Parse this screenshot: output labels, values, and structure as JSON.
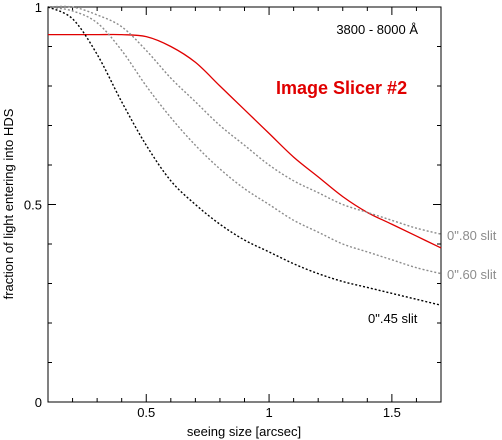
{
  "chart_data": {
    "type": "line",
    "title": "",
    "xlabel": "seeing size [arcsec]",
    "ylabel": "fraction of light entering into HDS",
    "xlim": [
      0.1,
      1.7
    ],
    "ylim": [
      0,
      1
    ],
    "x_ticks": [
      0.5,
      1,
      1.5
    ],
    "x_tick_labels": [
      "0.5",
      "1",
      "1.5"
    ],
    "y_ticks": [
      0,
      0.5,
      1
    ],
    "y_tick_labels": [
      "0",
      "0.5",
      "1"
    ],
    "grid": false,
    "annotations": {
      "wavelength_range": "3800 - 8000 Å",
      "slicer": "Image Slicer #2"
    },
    "series": [
      {
        "name": "Image Slicer #2",
        "color": "#e00000",
        "style": "solid",
        "x": [
          0.1,
          0.2,
          0.3,
          0.4,
          0.5,
          0.6,
          0.7,
          0.8,
          0.9,
          1.0,
          1.1,
          1.2,
          1.3,
          1.4,
          1.5,
          1.6,
          1.7
        ],
        "y": [
          0.93,
          0.93,
          0.93,
          0.93,
          0.925,
          0.9,
          0.86,
          0.8,
          0.74,
          0.68,
          0.62,
          0.57,
          0.52,
          0.48,
          0.45,
          0.42,
          0.39
        ]
      },
      {
        "name": "0\".80 slit",
        "color": "#8c8c8c",
        "style": "dotted",
        "x": [
          0.1,
          0.2,
          0.3,
          0.4,
          0.5,
          0.6,
          0.7,
          0.8,
          0.9,
          1.0,
          1.1,
          1.2,
          1.3,
          1.4,
          1.5,
          1.6,
          1.7
        ],
        "y": [
          1.0,
          1.0,
          0.98,
          0.95,
          0.89,
          0.82,
          0.76,
          0.7,
          0.65,
          0.6,
          0.56,
          0.53,
          0.5,
          0.48,
          0.46,
          0.44,
          0.425
        ]
      },
      {
        "name": "0\".60 slit",
        "color": "#8c8c8c",
        "style": "dotted",
        "x": [
          0.1,
          0.2,
          0.3,
          0.4,
          0.5,
          0.6,
          0.7,
          0.8,
          0.9,
          1.0,
          1.1,
          1.2,
          1.3,
          1.4,
          1.5,
          1.6,
          1.7
        ],
        "y": [
          1.0,
          0.99,
          0.96,
          0.89,
          0.8,
          0.72,
          0.65,
          0.59,
          0.54,
          0.5,
          0.46,
          0.43,
          0.4,
          0.38,
          0.36,
          0.34,
          0.325
        ]
      },
      {
        "name": "0\".45 slit",
        "color": "#000000",
        "style": "dotted",
        "x": [
          0.1,
          0.2,
          0.3,
          0.4,
          0.5,
          0.6,
          0.7,
          0.8,
          0.9,
          1.0,
          1.1,
          1.2,
          1.3,
          1.4,
          1.5,
          1.6,
          1.7
        ],
        "y": [
          1.0,
          0.97,
          0.88,
          0.76,
          0.65,
          0.56,
          0.5,
          0.45,
          0.41,
          0.38,
          0.35,
          0.325,
          0.305,
          0.29,
          0.275,
          0.26,
          0.245
        ]
      }
    ]
  }
}
